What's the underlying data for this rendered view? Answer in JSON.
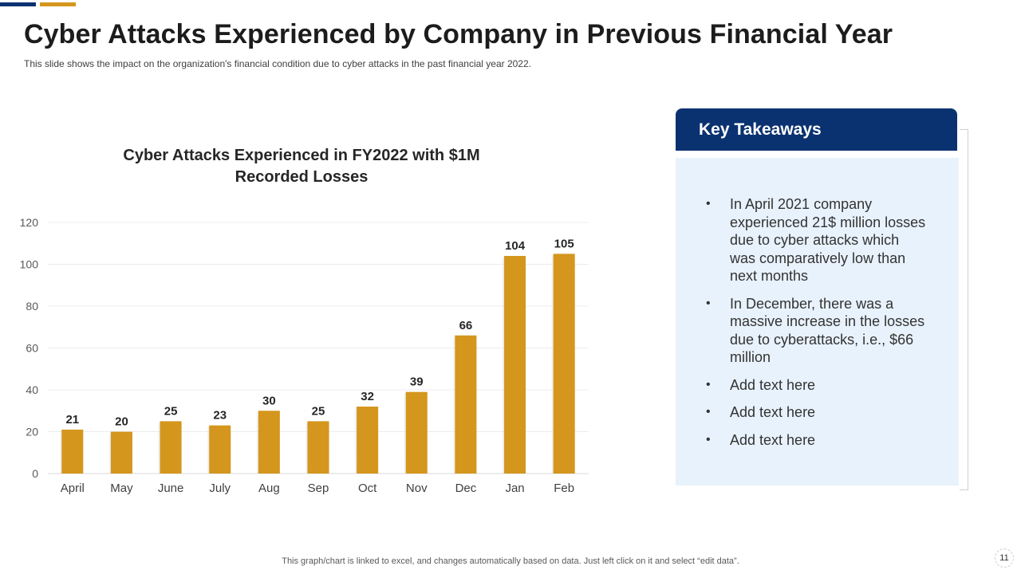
{
  "header": {
    "title": "Cyber Attacks Experienced by Company in Previous Financial Year",
    "subtitle": "This slide shows the impact on the organization's financial condition due to cyber attacks in the past financial year 2022."
  },
  "colors": {
    "accent_navy": "#0b3270",
    "accent_gold": "#d4961d",
    "panel_bg": "#e8f2fc"
  },
  "chart_data": {
    "type": "bar",
    "title_line1": "Cyber Attacks Experienced in FY2022 with $1M",
    "title_line2": "Recorded Losses",
    "categories": [
      "April",
      "May",
      "June",
      "July",
      "Aug",
      "Sep",
      "Oct",
      "Nov",
      "Dec",
      "Jan",
      "Feb"
    ],
    "values": [
      21,
      20,
      25,
      23,
      30,
      25,
      32,
      39,
      66,
      104,
      105
    ],
    "ylim": [
      0,
      120
    ],
    "yticks": [
      0,
      20,
      40,
      60,
      80,
      100,
      120
    ],
    "grid": true,
    "data_labels": true,
    "xlabel": "",
    "ylabel": ""
  },
  "takeaways": {
    "title": "Key Takeaways",
    "bullet": "•",
    "items": [
      "In April 2021 company experienced 21$ million losses due to cyber attacks which was comparatively low than next months",
      "In December, there was a massive increase in the losses due to cyberattacks, i.e., $66 million",
      "Add text here",
      "Add text here",
      "Add text here"
    ]
  },
  "footer": {
    "note": "This graph/chart is linked to excel, and changes automatically based on data. Just left click on it and select “edit data”.",
    "page_number": "11"
  }
}
